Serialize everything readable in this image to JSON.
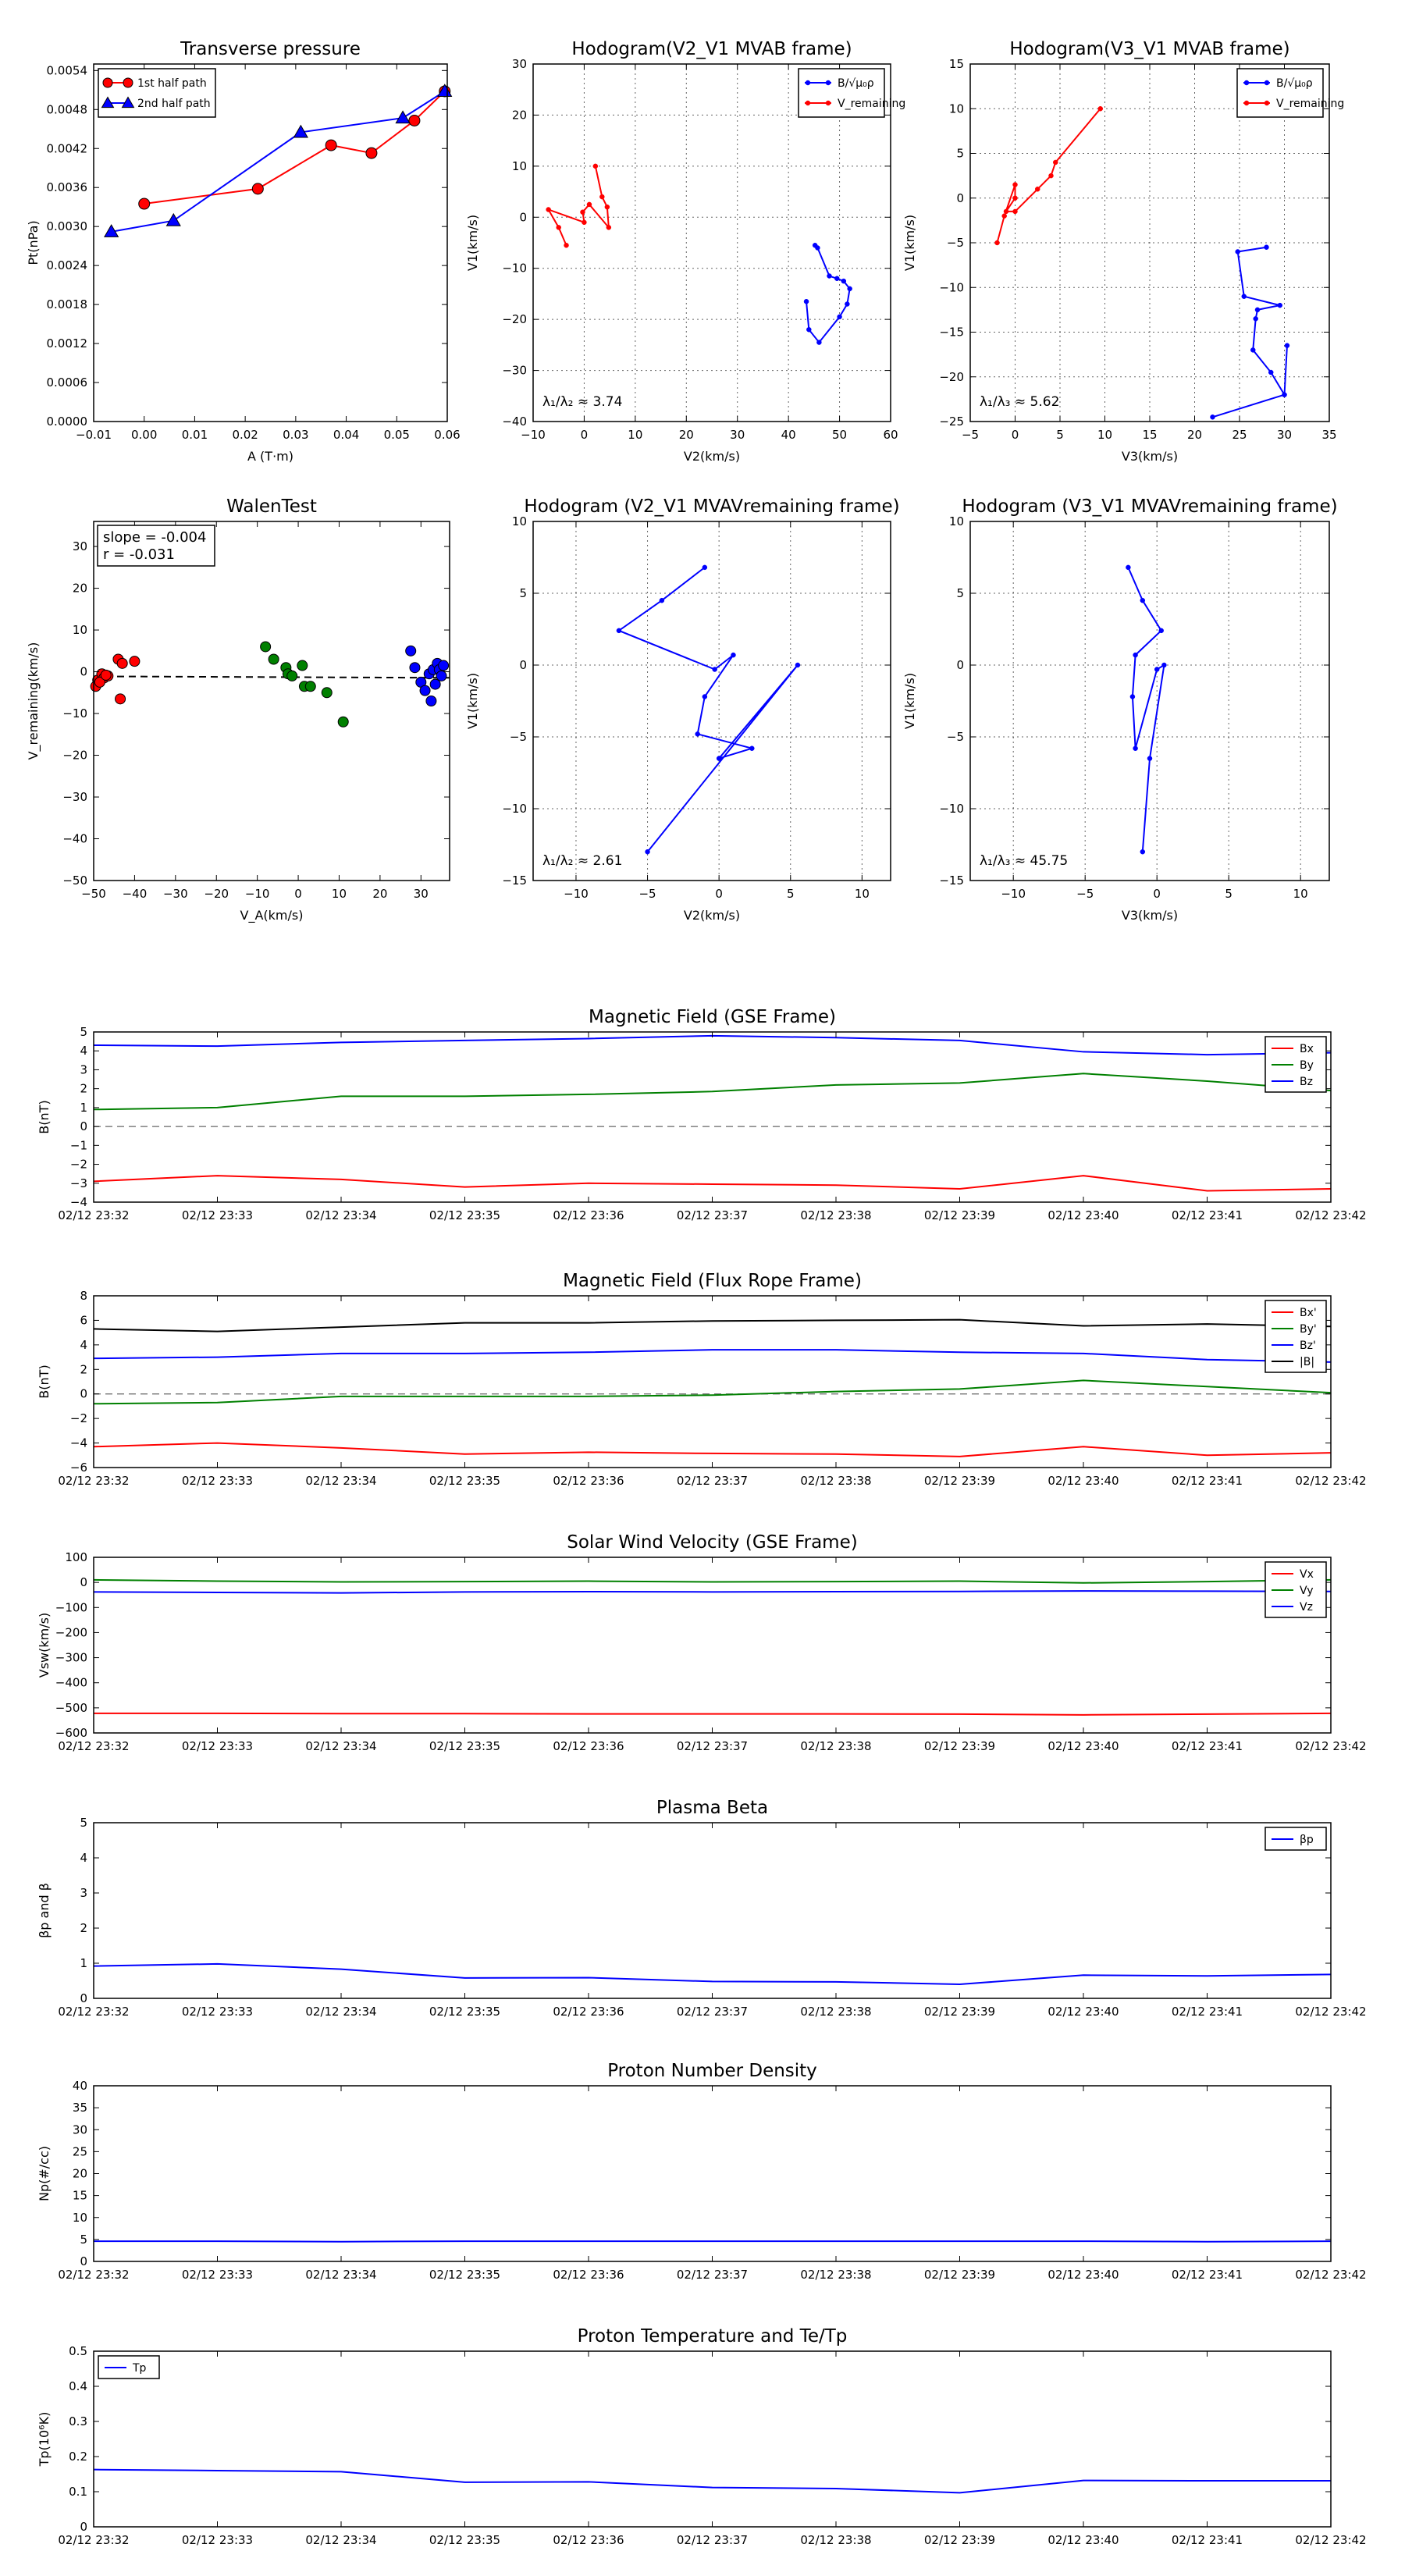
{
  "chart_data": [
    {
      "type": "scatter",
      "title": "Transverse pressure",
      "xlabel": "A (T·m)",
      "ylabel": "Pt(nPa)",
      "xlim": [
        -0.01,
        0.06
      ],
      "ylim": [
        0.0,
        0.0055
      ],
      "xticks": [
        -0.01,
        0.0,
        0.01,
        0.02,
        0.03,
        0.04,
        0.05,
        0.06
      ],
      "xtick_labels": [
        "−0.01",
        "0.00",
        "0.01",
        "0.02",
        "0.03",
        "0.04",
        "0.05",
        "0.06"
      ],
      "yticks": [
        0.0,
        0.0006,
        0.0012,
        0.0018,
        0.0024,
        0.003,
        0.0036,
        0.0042,
        0.0048,
        0.0054
      ],
      "ytick_labels": [
        "0.0000",
        "0.0006",
        "0.0012",
        "0.0018",
        "0.0024",
        "0.0030",
        "0.0036",
        "0.0042",
        "0.0048",
        "0.0054"
      ],
      "grid": false,
      "legend_position": "top-left",
      "series": [
        {
          "name": "1st half path",
          "color": "#ff0000",
          "marker": "circle",
          "x": [
            0.0,
            0.0225,
            0.037,
            0.045,
            0.0535,
            0.0595
          ],
          "y": [
            0.00335,
            0.00358,
            0.00425,
            0.00413,
            0.00463,
            0.00508
          ]
        },
        {
          "name": "2nd half path",
          "color": "#0000ff",
          "marker": "triangle",
          "x": [
            -0.0065,
            0.0058,
            0.031,
            0.0512,
            0.0595
          ],
          "y": [
            0.00292,
            0.00309,
            0.00445,
            0.00467,
            0.00508
          ]
        }
      ]
    },
    {
      "type": "line",
      "title": "Hodogram(V2_V1 MVAB frame)",
      "xlabel": "V2(km/s)",
      "ylabel": "V1(km/s)",
      "xlim": [
        -10,
        60
      ],
      "ylim": [
        -40,
        30
      ],
      "xticks": [
        -10,
        0,
        10,
        20,
        30,
        40,
        50,
        60
      ],
      "xtick_labels": [
        "−10",
        "0",
        "10",
        "20",
        "30",
        "40",
        "50",
        "60"
      ],
      "yticks": [
        -40,
        -30,
        -20,
        -10,
        0,
        10,
        20,
        30
      ],
      "ytick_labels": [
        "−40",
        "−30",
        "−20",
        "−10",
        "0",
        "10",
        "20",
        "30"
      ],
      "grid": true,
      "legend_position": "top-right",
      "annotation": "λ₁/λ₂ ≈ 3.74",
      "series": [
        {
          "name": "B/√μ₀ρ",
          "color": "#0000ff",
          "x": [
            45.2,
            45.7,
            48.0,
            49.5,
            50.8,
            52.0,
            51.5,
            50.0,
            46.0,
            44.0,
            43.5
          ],
          "y": [
            -5.5,
            -6.0,
            -11.5,
            -12.0,
            -12.5,
            -14.0,
            -17.0,
            -19.5,
            -24.5,
            -22.0,
            -16.5
          ]
        },
        {
          "name": "V_remaining",
          "color": "#ff0000",
          "x": [
            2.2,
            3.5,
            4.5,
            4.8,
            1.0,
            -0.3,
            0.0,
            -7.0,
            -5.0,
            -3.5
          ],
          "y": [
            10.0,
            4.0,
            2.0,
            -2.0,
            2.5,
            1.0,
            -1.0,
            1.5,
            -2.0,
            -5.5
          ]
        }
      ]
    },
    {
      "type": "line",
      "title": "Hodogram(V3_V1 MVAB frame)",
      "xlabel": "V3(km/s)",
      "ylabel": "V1(km/s)",
      "xlim": [
        -5,
        35
      ],
      "ylim": [
        -25,
        15
      ],
      "xticks": [
        -5,
        0,
        5,
        10,
        15,
        20,
        25,
        30,
        35
      ],
      "xtick_labels": [
        "−5",
        "0",
        "5",
        "10",
        "15",
        "20",
        "25",
        "30",
        "35"
      ],
      "yticks": [
        -25,
        -20,
        -15,
        -10,
        -5,
        0,
        5,
        10,
        15
      ],
      "ytick_labels": [
        "−25",
        "−20",
        "−15",
        "−10",
        "−5",
        "0",
        "5",
        "10",
        "15"
      ],
      "grid": true,
      "legend_position": "top-right",
      "annotation": "λ₁/λ₃ ≈ 5.62",
      "series": [
        {
          "name": "B/√μ₀ρ",
          "color": "#0000ff",
          "x": [
            28.0,
            24.8,
            25.5,
            29.5,
            27.0,
            26.8,
            26.5,
            28.5,
            30.0,
            30.3,
            30.0,
            22.0
          ],
          "y": [
            -5.5,
            -6.0,
            -11.0,
            -12.0,
            -12.5,
            -13.5,
            -17.0,
            -19.5,
            -22.0,
            -16.5,
            -22.0,
            -24.5
          ]
        },
        {
          "name": "V_remaining",
          "color": "#ff0000",
          "x": [
            9.5,
            4.5,
            4.0,
            2.5,
            0.0,
            -1.0,
            0.0,
            0.0,
            -1.2,
            -2.0
          ],
          "y": [
            10.0,
            4.0,
            2.5,
            1.0,
            -1.5,
            -1.5,
            0.0,
            1.5,
            -2.0,
            -5.0
          ]
        }
      ]
    },
    {
      "type": "scatter",
      "title": "WalenTest",
      "xlabel": "V_A(km/s)",
      "ylabel": "V_remaining(km/s)",
      "xlim": [
        -50,
        37
      ],
      "ylim": [
        -50,
        36
      ],
      "xticks": [
        -50,
        -40,
        -30,
        -20,
        -10,
        0,
        10,
        20,
        30
      ],
      "xtick_labels": [
        "−50",
        "−40",
        "−30",
        "−20",
        "−10",
        "0",
        "10",
        "20",
        "30"
      ],
      "yticks": [
        -50,
        -40,
        -30,
        -20,
        -10,
        0,
        10,
        20,
        30
      ],
      "ytick_labels": [
        "−50",
        "−40",
        "−30",
        "−20",
        "−10",
        "0",
        "10",
        "20",
        "30"
      ],
      "grid": false,
      "legend_position": "top-left",
      "annotation_lines": [
        "slope = -0.004",
        "r = -0.031"
      ],
      "fit_line": {
        "slope": -0.004,
        "intercept": -1.3,
        "color": "#000000",
        "style": "dashed"
      },
      "series": [
        {
          "color": "#ff0000",
          "x": [
            -49.0,
            -48.0,
            -47.5,
            -46.5,
            -49.5,
            -48.5,
            -47.0,
            -44.0,
            -43.0,
            -40.0,
            -43.5
          ],
          "y": [
            -2.0,
            -0.5,
            -1.5,
            -1.0,
            -3.5,
            -2.5,
            -0.8,
            3.0,
            2.0,
            2.5,
            -6.5
          ]
        },
        {
          "color": "#008000",
          "x": [
            -8.0,
            -6.0,
            -3.0,
            -2.5,
            -1.5,
            1.0,
            1.5,
            3.0,
            7.0,
            11.0
          ],
          "y": [
            6.0,
            3.0,
            1.0,
            -0.5,
            -1.0,
            1.5,
            -3.5,
            -3.5,
            -5.0,
            -12.0
          ]
        },
        {
          "color": "#0000ff",
          "x": [
            27.5,
            28.5,
            30.0,
            31.0,
            32.0,
            33.0,
            33.5,
            34.0,
            34.5,
            35.0,
            35.5,
            32.5
          ],
          "y": [
            5.0,
            1.0,
            -2.5,
            -4.5,
            -0.5,
            0.5,
            -3.0,
            2.0,
            0.5,
            -1.0,
            1.5,
            -7.0
          ]
        }
      ]
    },
    {
      "type": "line",
      "title": "Hodogram (V2_V1 MVAVremaining frame)",
      "xlabel": "V2(km/s)",
      "ylabel": "V1(km/s)",
      "xlim": [
        -13,
        12
      ],
      "ylim": [
        -15,
        10
      ],
      "xticks": [
        -10,
        -5,
        0,
        5,
        10
      ],
      "xtick_labels": [
        "−10",
        "−5",
        "0",
        "5",
        "10"
      ],
      "yticks": [
        -15,
        -10,
        -5,
        0,
        5,
        10
      ],
      "ytick_labels": [
        "−15",
        "−10",
        "−5",
        "0",
        "5",
        "10"
      ],
      "grid": true,
      "annotation": "λ₁/λ₂ ≈ 2.61",
      "series": [
        {
          "color": "#0000ff",
          "x": [
            -1.0,
            -4.0,
            -7.0,
            -0.3,
            1.0,
            -1.0,
            -1.5,
            2.3,
            0.0,
            5.5,
            -5.0
          ],
          "y": [
            6.8,
            4.5,
            2.4,
            -0.3,
            0.7,
            -2.2,
            -4.8,
            -5.8,
            -6.5,
            0.0,
            -13.0
          ]
        }
      ]
    },
    {
      "type": "line",
      "title": "Hodogram (V3_V1 MVAVremaining frame)",
      "xlabel": "V3(km/s)",
      "ylabel": "V1(km/s)",
      "xlim": [
        -13,
        12
      ],
      "ylim": [
        -15,
        10
      ],
      "xticks": [
        -10,
        -5,
        0,
        5,
        10
      ],
      "xtick_labels": [
        "−10",
        "−5",
        "0",
        "5",
        "10"
      ],
      "yticks": [
        -15,
        -10,
        -5,
        0,
        5,
        10
      ],
      "ytick_labels": [
        "−15",
        "−10",
        "−5",
        "0",
        "5",
        "10"
      ],
      "grid": true,
      "annotation": "λ₁/λ₃ ≈ 45.75",
      "series": [
        {
          "color": "#0000ff",
          "x": [
            -2.0,
            -1.0,
            0.3,
            -1.5,
            -1.7,
            -1.5,
            0.0,
            0.5,
            -0.5,
            -1.0
          ],
          "y": [
            6.8,
            4.5,
            2.4,
            0.7,
            -2.2,
            -5.8,
            -0.3,
            0.0,
            -6.5,
            -13.0
          ]
        }
      ]
    },
    {
      "type": "line",
      "title": "Magnetic Field (GSE Frame)",
      "ylabel": "B(nT)",
      "ylim": [
        -4,
        5
      ],
      "yticks": [
        -4,
        -3,
        -2,
        -1,
        0,
        1,
        2,
        3,
        4,
        5
      ],
      "ytick_labels": [
        "−4",
        "−3",
        "−2",
        "−1",
        "0",
        "1",
        "2",
        "3",
        "4",
        "5"
      ],
      "categories": [
        "02/12 23:32",
        "02/12 23:33",
        "02/12 23:34",
        "02/12 23:35",
        "02/12 23:36",
        "02/12 23:37",
        "02/12 23:38",
        "02/12 23:39",
        "02/12 23:40",
        "02/12 23:41",
        "02/12 23:42"
      ],
      "zero_line": true,
      "legend_position": "top-right",
      "series": [
        {
          "name": "Bx",
          "color": "#ff0000",
          "values": [
            -2.9,
            -2.6,
            -2.8,
            -3.2,
            -3.0,
            -3.05,
            -3.1,
            -3.3,
            -2.6,
            -3.4,
            -3.3
          ]
        },
        {
          "name": "By",
          "color": "#008000",
          "values": [
            0.9,
            1.0,
            1.6,
            1.6,
            1.7,
            1.85,
            2.2,
            2.3,
            2.8,
            2.4,
            1.9
          ]
        },
        {
          "name": "Bz",
          "color": "#0000ff",
          "values": [
            4.3,
            4.25,
            4.45,
            4.55,
            4.65,
            4.8,
            4.7,
            4.55,
            3.95,
            3.8,
            3.9
          ]
        }
      ]
    },
    {
      "type": "line",
      "title": "Magnetic Field (Flux Rope Frame)",
      "ylabel": "B(nT)",
      "ylim": [
        -6,
        8
      ],
      "yticks": [
        -6,
        -4,
        -2,
        0,
        2,
        4,
        6,
        8
      ],
      "ytick_labels": [
        "−6",
        "−4",
        "−2",
        "0",
        "2",
        "4",
        "6",
        "8"
      ],
      "categories": [
        "02/12 23:32",
        "02/12 23:33",
        "02/12 23:34",
        "02/12 23:35",
        "02/12 23:36",
        "02/12 23:37",
        "02/12 23:38",
        "02/12 23:39",
        "02/12 23:40",
        "02/12 23:41",
        "02/12 23:42"
      ],
      "zero_line": true,
      "legend_position": "top-right",
      "series": [
        {
          "name": "Bx'",
          "color": "#ff0000",
          "values": [
            -4.3,
            -4.0,
            -4.4,
            -4.9,
            -4.75,
            -4.85,
            -4.9,
            -5.1,
            -4.3,
            -5.0,
            -4.8
          ]
        },
        {
          "name": "By'",
          "color": "#008000",
          "values": [
            -0.8,
            -0.7,
            -0.2,
            -0.2,
            -0.2,
            -0.1,
            0.2,
            0.4,
            1.1,
            0.6,
            0.1
          ]
        },
        {
          "name": "Bz'",
          "color": "#0000ff",
          "values": [
            2.9,
            3.0,
            3.3,
            3.3,
            3.4,
            3.6,
            3.6,
            3.4,
            3.3,
            2.8,
            2.6
          ]
        },
        {
          "name": "|B|",
          "color": "#000000",
          "values": [
            5.3,
            5.1,
            5.45,
            5.8,
            5.8,
            5.95,
            6.0,
            6.05,
            5.55,
            5.7,
            5.5
          ]
        }
      ]
    },
    {
      "type": "line",
      "title": "Solar Wind Velocity (GSE Frame)",
      "ylabel": "Vsw(km/s)",
      "ylim": [
        -600,
        100
      ],
      "yticks": [
        -600,
        -500,
        -400,
        -300,
        -200,
        -100,
        0,
        100
      ],
      "ytick_labels": [
        "−600",
        "−500",
        "−400",
        "−300",
        "−200",
        "−100",
        "0",
        "100"
      ],
      "categories": [
        "02/12 23:32",
        "02/12 23:33",
        "02/12 23:34",
        "02/12 23:35",
        "02/12 23:36",
        "02/12 23:37",
        "02/12 23:38",
        "02/12 23:39",
        "02/12 23:40",
        "02/12 23:41",
        "02/12 23:42"
      ],
      "legend_position": "top-right",
      "series": [
        {
          "name": "Vx",
          "color": "#ff0000",
          "values": [
            -522,
            -522,
            -523,
            -523,
            -524,
            -524,
            -524,
            -525,
            -528,
            -525,
            -522
          ]
        },
        {
          "name": "Vy",
          "color": "#008000",
          "values": [
            10,
            5,
            2,
            3,
            5,
            2,
            3,
            5,
            -2,
            3,
            10
          ]
        },
        {
          "name": "Vz",
          "color": "#0000ff",
          "values": [
            -38,
            -40,
            -42,
            -38,
            -37,
            -38,
            -37,
            -36,
            -34,
            -35,
            -36
          ]
        }
      ]
    },
    {
      "type": "line",
      "title": "Plasma Beta",
      "ylabel": "βp and β",
      "ylim": [
        0,
        5
      ],
      "yticks": [
        0,
        1,
        2,
        3,
        4,
        5
      ],
      "ytick_labels": [
        "0",
        "1",
        "2",
        "3",
        "4",
        "5"
      ],
      "categories": [
        "02/12 23:32",
        "02/12 23:33",
        "02/12 23:34",
        "02/12 23:35",
        "02/12 23:36",
        "02/12 23:37",
        "02/12 23:38",
        "02/12 23:39",
        "02/12 23:40",
        "02/12 23:41",
        "02/12 23:42"
      ],
      "legend_position": "top-right",
      "series": [
        {
          "name": "βp",
          "color": "#0000ff",
          "values": [
            0.92,
            0.98,
            0.83,
            0.58,
            0.59,
            0.48,
            0.47,
            0.4,
            0.66,
            0.64,
            0.68
          ]
        }
      ]
    },
    {
      "type": "line",
      "title": "Proton Number Density",
      "ylabel": "Np(#/cc)",
      "ylim": [
        0,
        40
      ],
      "yticks": [
        0,
        5,
        10,
        15,
        20,
        25,
        30,
        35,
        40
      ],
      "ytick_labels": [
        "0",
        "5",
        "10",
        "15",
        "20",
        "25",
        "30",
        "35",
        "40"
      ],
      "categories": [
        "02/12 23:32",
        "02/12 23:33",
        "02/12 23:34",
        "02/12 23:35",
        "02/12 23:36",
        "02/12 23:37",
        "02/12 23:38",
        "02/12 23:39",
        "02/12 23:40",
        "02/12 23:41",
        "02/12 23:42"
      ],
      "series": [
        {
          "color": "#0000ff",
          "values": [
            4.6,
            4.6,
            4.5,
            4.6,
            4.6,
            4.6,
            4.6,
            4.6,
            4.6,
            4.5,
            4.6
          ]
        }
      ]
    },
    {
      "type": "line",
      "title": "Proton Temperature and Te/Tp",
      "ylabel": "Tp(10⁶K)",
      "ylim": [
        0,
        0.5
      ],
      "yticks": [
        0,
        0.1,
        0.2,
        0.3,
        0.4,
        0.5
      ],
      "ytick_labels": [
        "0",
        "0.1",
        "0.2",
        "0.3",
        "0.4",
        "0.5"
      ],
      "categories": [
        "02/12 23:32",
        "02/12 23:33",
        "02/12 23:34",
        "02/12 23:35",
        "02/12 23:36",
        "02/12 23:37",
        "02/12 23:38",
        "02/12 23:39",
        "02/12 23:40",
        "02/12 23:41",
        "02/12 23:42"
      ],
      "legend_position": "top-left",
      "series": [
        {
          "name": "Tp",
          "color": "#0000ff",
          "values": [
            0.163,
            0.16,
            0.157,
            0.127,
            0.128,
            0.112,
            0.109,
            0.097,
            0.132,
            0.131,
            0.131
          ]
        }
      ]
    }
  ]
}
